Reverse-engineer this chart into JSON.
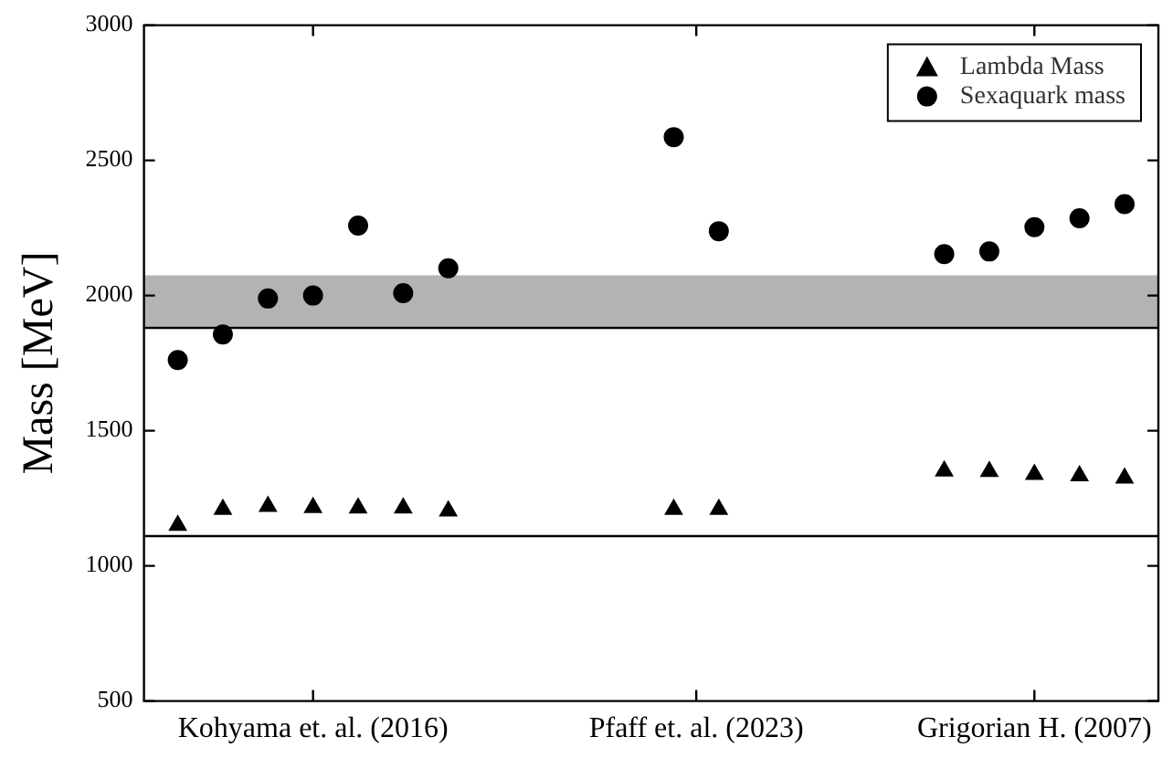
{
  "chart_data": {
    "type": "scatter",
    "ylabel": "Mass [MeV]",
    "categories": [
      null,
      null,
      null,
      null,
      null,
      null,
      null,
      "Kohyama et. al. (2016)",
      null,
      null,
      null,
      null,
      null,
      null,
      null,
      null,
      null,
      null,
      null,
      null,
      null,
      null,
      null,
      null,
      "Pfaff et. al. (2023)",
      null,
      null,
      null,
      null,
      null,
      null,
      null,
      null,
      null,
      null,
      null,
      null,
      null,
      null,
      "Grigorian H. (2007)",
      null,
      null,
      null,
      null,
      null
    ],
    "ylim": [
      500,
      3000
    ],
    "yticks": [
      500,
      1000,
      1500,
      2000,
      2500,
      3000
    ],
    "series": [
      {
        "name": "Lambda Mass",
        "color": "#000000",
        "marker": "triangle",
        "values": [
          null,
          1150,
          null,
          1209,
          null,
          1220,
          null,
          1216,
          null,
          1214,
          null,
          1214,
          null,
          1203,
          null,
          null,
          null,
          null,
          null,
          null,
          null,
          null,
          null,
          1209,
          null,
          1209,
          null,
          null,
          null,
          null,
          null,
          null,
          null,
          null,
          null,
          1351,
          null,
          1349,
          null,
          1338,
          null,
          1333,
          null,
          1325,
          null
        ]
      },
      {
        "name": "Sexaquark mass",
        "color": "#000000",
        "marker": "circle",
        "values": [
          null,
          1761,
          null,
          1856,
          null,
          1989,
          null,
          2000,
          null,
          2259,
          null,
          2009,
          null,
          2101,
          null,
          null,
          null,
          null,
          null,
          null,
          null,
          null,
          null,
          2586,
          null,
          2238,
          null,
          null,
          null,
          null,
          null,
          null,
          null,
          null,
          null,
          2153,
          null,
          2163,
          null,
          2253,
          null,
          2286,
          null,
          2338,
          null
        ]
      }
    ],
    "ref_lines": [
      {
        "axis": "y",
        "value": 1115,
        "color": "#000000"
      },
      {
        "axis": "y",
        "value": 1885,
        "color": "#000000"
      }
    ],
    "bands": [
      {
        "axis": "y",
        "from": 1885,
        "to": 2075,
        "color": "#b3b3b3"
      }
    ],
    "grid": false,
    "legend": "top right"
  }
}
